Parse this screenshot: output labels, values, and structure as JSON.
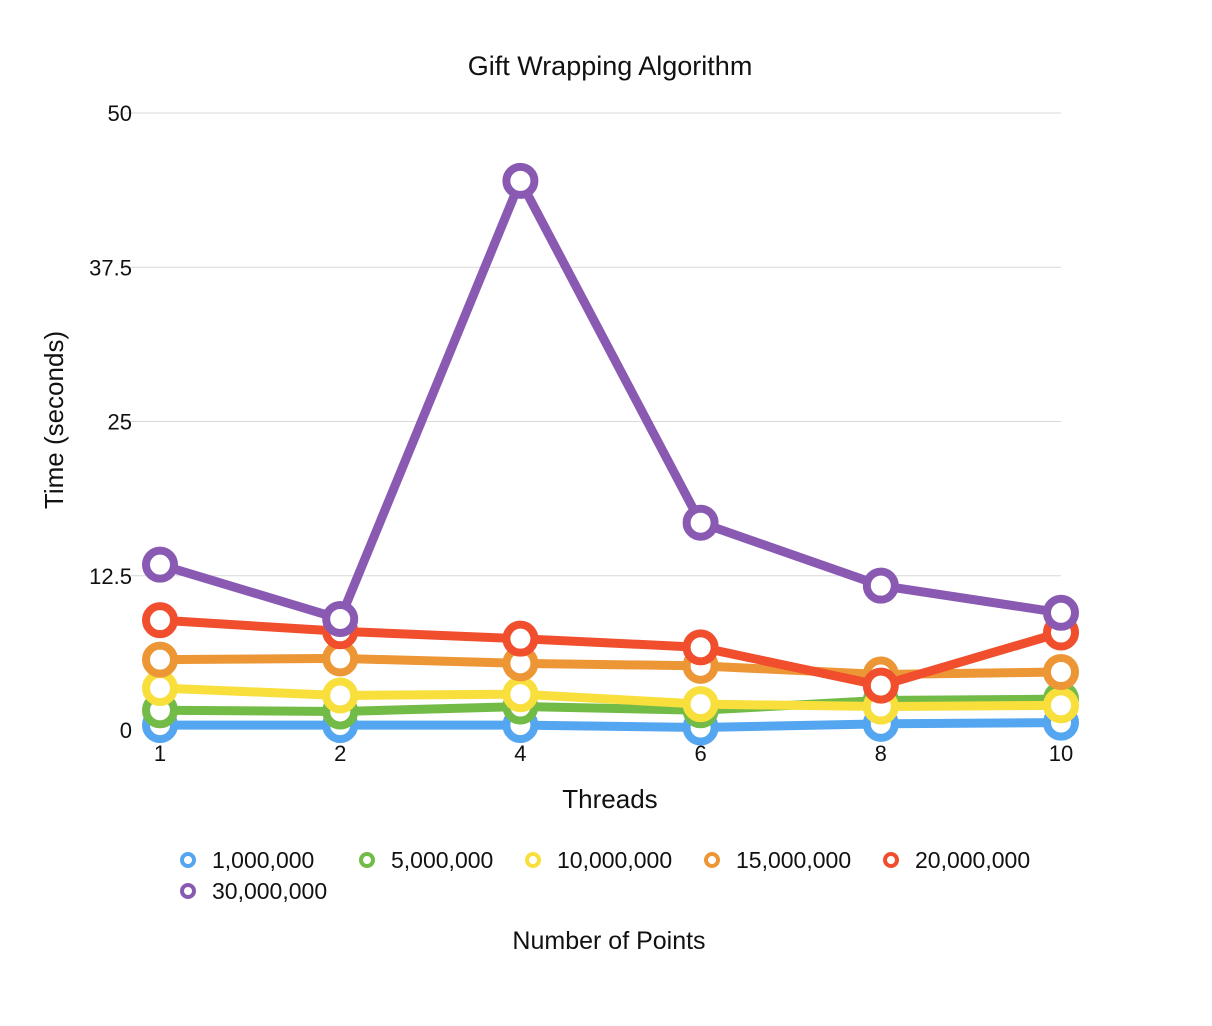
{
  "chart_data": {
    "type": "line",
    "title": "Gift Wrapping Algorithm",
    "xlabel": "Threads",
    "ylabel": "Time (seconds)",
    "legend_title": "Number of Points",
    "legend_position": "bottom",
    "grid": true,
    "categories": [
      "1",
      "2",
      "4",
      "6",
      "8",
      "10"
    ],
    "ylim": [
      0,
      50
    ],
    "yticks": [
      "0",
      "12.5",
      "25",
      "37.5",
      "50"
    ],
    "series": [
      {
        "name": "1,000,000",
        "color": "#55a6f0",
        "values": [
          0.4,
          0.4,
          0.4,
          0.2,
          0.5,
          0.6
        ]
      },
      {
        "name": "5,000,000",
        "color": "#73bb47",
        "values": [
          1.6,
          1.5,
          1.9,
          1.6,
          2.4,
          2.5
        ]
      },
      {
        "name": "10,000,000",
        "color": "#f8df3c",
        "values": [
          3.4,
          2.8,
          2.9,
          2.1,
          1.9,
          2.0
        ]
      },
      {
        "name": "15,000,000",
        "color": "#ec9636",
        "values": [
          5.7,
          5.8,
          5.4,
          5.2,
          4.5,
          4.7
        ]
      },
      {
        "name": "20,000,000",
        "color": "#f04e2d",
        "values": [
          8.9,
          8.0,
          7.4,
          6.7,
          3.6,
          7.9
        ]
      },
      {
        "name": "30,000,000",
        "color": "#8a5ab3",
        "values": [
          13.4,
          9.0,
          44.5,
          16.8,
          11.7,
          9.5
        ]
      }
    ]
  }
}
